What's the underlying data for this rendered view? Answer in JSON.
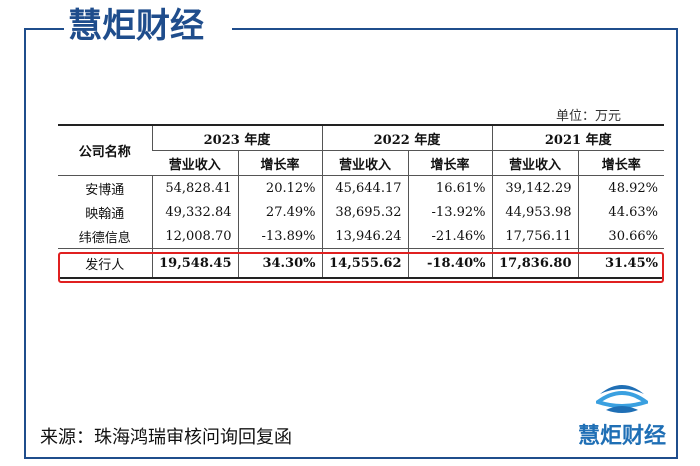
{
  "brand": {
    "name": "慧炬财经"
  },
  "unit": "单位：万元",
  "table": {
    "header": {
      "company": "公司名称",
      "years": [
        "2023 年度",
        "2022 年度",
        "2021 年度"
      ],
      "sub": [
        "营业收入",
        "增长率",
        "营业收入",
        "增长率",
        "营业收入",
        "增长率"
      ]
    },
    "rows": [
      {
        "name": "安博通",
        "cells": [
          "54,828.41",
          "20.12%",
          "45,644.17",
          "16.61%",
          "39,142.29",
          "48.92%"
        ]
      },
      {
        "name": "映翰通",
        "cells": [
          "49,332.84",
          "27.49%",
          "38,695.32",
          "-13.92%",
          "44,953.98",
          "44.63%"
        ]
      },
      {
        "name": "纬德信息",
        "cells": [
          "12,008.70",
          "-13.89%",
          "13,946.24",
          "-21.46%",
          "17,756.11",
          "30.66%"
        ]
      },
      {
        "name": "发行人",
        "cells": [
          "19,548.45",
          "34.30%",
          "14,555.62",
          "-18.40%",
          "17,836.80",
          "31.45%"
        ]
      }
    ]
  },
  "source": "来源：珠海鸿瑞审核问询回复函",
  "colors": {
    "brand": "#1f4d8c",
    "highlight": "#e02020"
  }
}
